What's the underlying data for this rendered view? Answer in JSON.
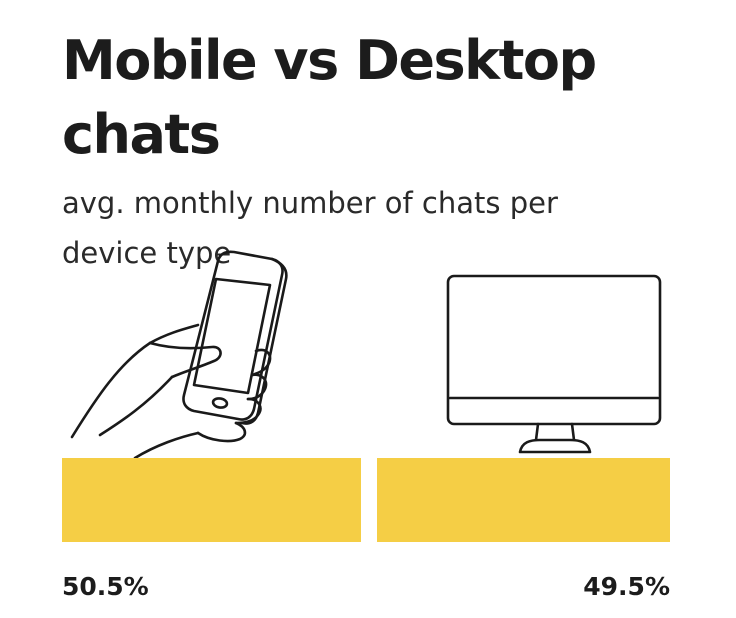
{
  "title": "Mobile vs Desktop chats",
  "subtitle": "avg. monthly number of chats per device type",
  "icons": {
    "left": "hand-holding-smartphone-icon",
    "right": "desktop-monitor-icon"
  },
  "colors": {
    "bar": "#F5CE45",
    "text": "#1C1C1C",
    "line": "#1A1A1A"
  },
  "chart_data": {
    "type": "bar",
    "orientation": "horizontal-stacked",
    "title": "Mobile vs Desktop chats",
    "subtitle": "avg. monthly number of chats per device type",
    "categories": [
      "Mobile",
      "Desktop"
    ],
    "values": [
      50.5,
      49.5
    ],
    "labels": [
      "50.5%",
      "49.5%"
    ],
    "unit": "%",
    "legend": "none",
    "grid": false
  }
}
